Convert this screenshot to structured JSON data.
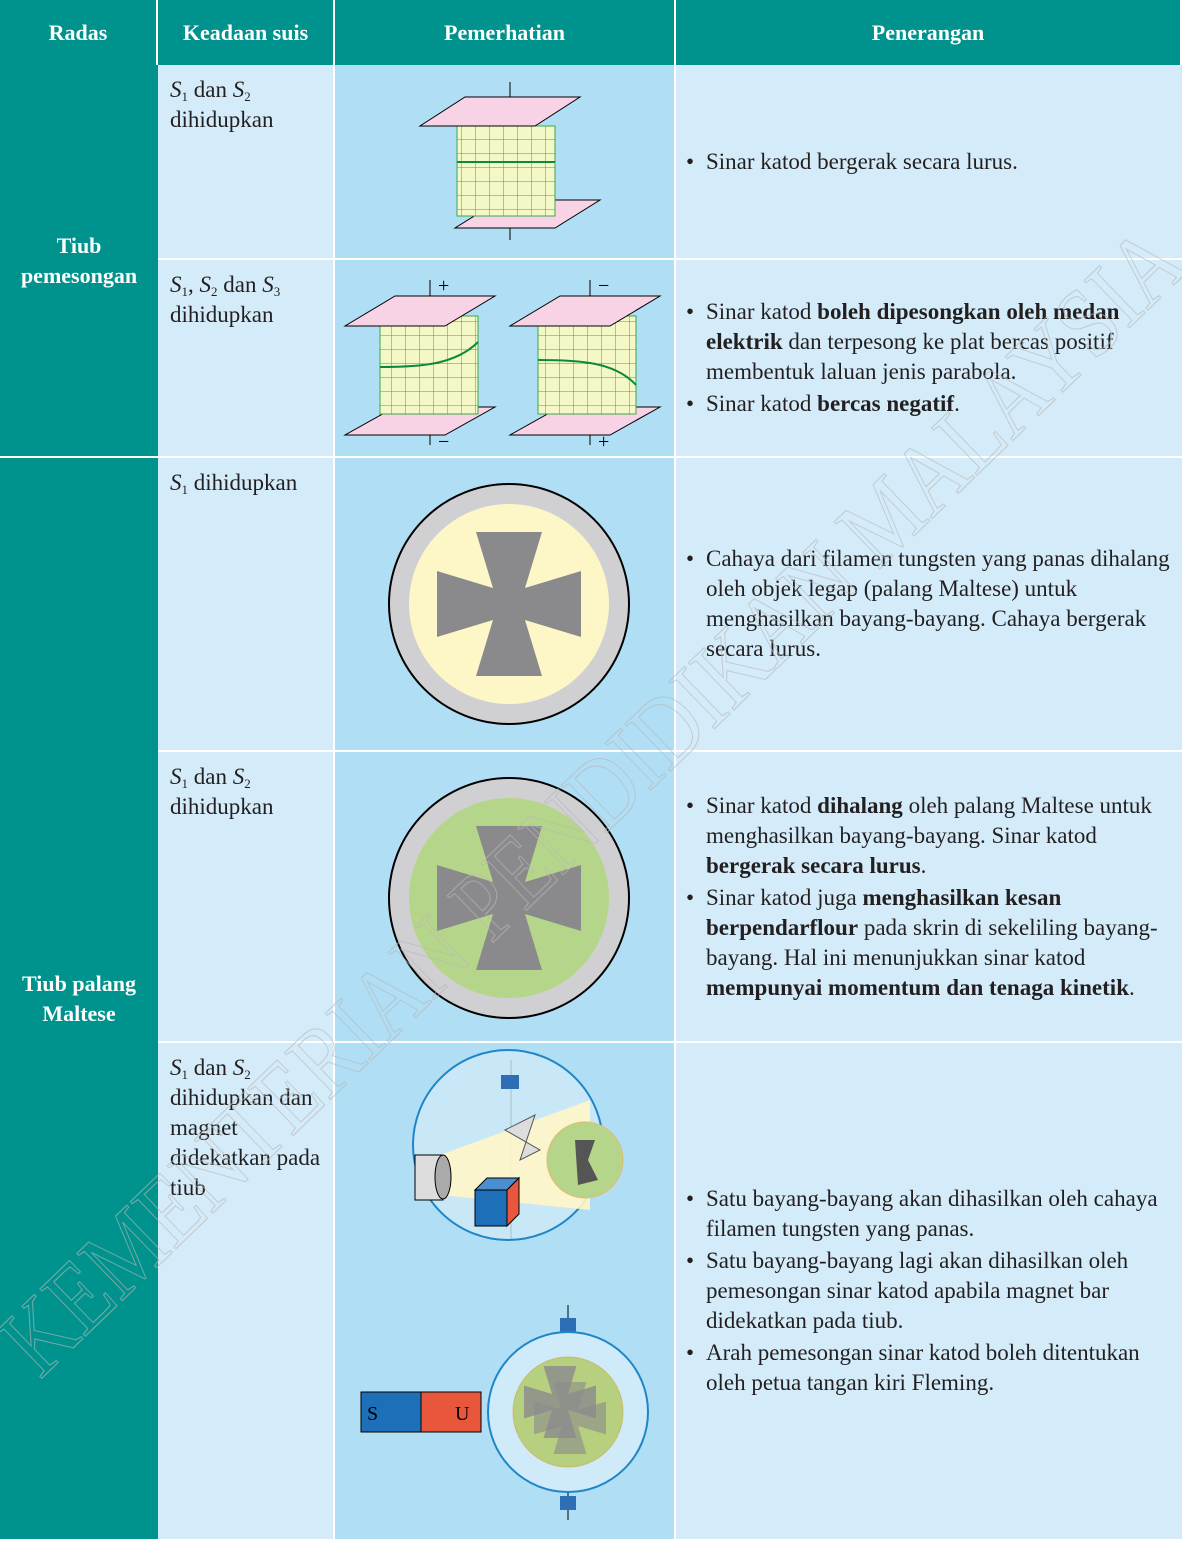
{
  "header": [
    "Radas",
    "Keadaan suis",
    "Pemerhatian",
    "Penerangan"
  ],
  "groups": [
    "Tiub pemesongan",
    "Tiub palang Maltese"
  ],
  "rows": [
    {
      "switch": [
        {
          "text": "S",
          "italic": true
        },
        {
          "text": "1",
          "sub": true
        },
        {
          "text": " dan "
        },
        {
          "text": "S",
          "italic": true
        },
        {
          "text": "2",
          "sub": true
        },
        {
          "text": " dihidupkan"
        }
      ],
      "explanation": [
        [
          {
            "text": "Sinar katod bergerak secara lurus."
          }
        ]
      ]
    },
    {
      "switch": [
        {
          "text": "S",
          "italic": true
        },
        {
          "text": "1",
          "sub": true
        },
        {
          "text": ", "
        },
        {
          "text": "S",
          "italic": true
        },
        {
          "text": "2",
          "sub": true
        },
        {
          "text": " dan "
        },
        {
          "text": "S",
          "italic": true
        },
        {
          "text": "3",
          "sub": true
        },
        {
          "text": " dihidupkan"
        }
      ],
      "explanation": [
        [
          {
            "text": "Sinar katod "
          },
          {
            "text": "boleh dipesongkan oleh medan elektrik",
            "bold": true
          },
          {
            "text": " dan terpesong ke plat bercas positif membentuk laluan jenis parabola."
          }
        ],
        [
          {
            "text": "Sinar katod "
          },
          {
            "text": "bercas negatif",
            "bold": true
          },
          {
            "text": "."
          }
        ]
      ],
      "labels": [
        "+",
        "−",
        "−",
        "+"
      ]
    },
    {
      "switch": [
        {
          "text": "S",
          "italic": true
        },
        {
          "text": "1",
          "sub": true
        },
        {
          "text": " dihidupkan"
        }
      ],
      "explanation": [
        [
          {
            "text": "Cahaya dari filamen tungsten yang panas dihalang oleh objek legap (palang Maltese) untuk menghasilkan bayang-bayang. Cahaya bergerak secara lurus."
          }
        ]
      ]
    },
    {
      "switch": [
        {
          "text": "S",
          "italic": true
        },
        {
          "text": "1",
          "sub": true
        },
        {
          "text": " dan "
        },
        {
          "text": "S",
          "italic": true
        },
        {
          "text": "2",
          "sub": true
        },
        {
          "text": " dihidupkan"
        }
      ],
      "explanation": [
        [
          {
            "text": "Sinar katod "
          },
          {
            "text": "dihalang",
            "bold": true
          },
          {
            "text": " oleh palang Maltese untuk menghasilkan bayang-bayang. Sinar katod "
          },
          {
            "text": "bergerak secara lurus",
            "bold": true
          },
          {
            "text": "."
          }
        ],
        [
          {
            "text": "Sinar katod juga "
          },
          {
            "text": "menghasilkan kesan berpendarflour",
            "bold": true
          },
          {
            "text": " pada skrin di sekeliling bayang-bayang. Hal ini menunjukkan sinar katod "
          },
          {
            "text": "mempunyai momentum dan tenaga kinetik",
            "bold": true
          },
          {
            "text": "."
          }
        ]
      ]
    },
    {
      "switch": [
        {
          "text": "S",
          "italic": true
        },
        {
          "text": "1",
          "sub": true
        },
        {
          "text": " dan "
        },
        {
          "text": "S",
          "italic": true
        },
        {
          "text": "2",
          "sub": true
        },
        {
          "text": " dihidupkan dan magnet didekatkan pada tiub"
        }
      ],
      "explanation": [
        [
          {
            "text": "Satu bayang-bayang akan dihasilkan oleh cahaya filamen tungsten yang panas."
          }
        ],
        [
          {
            "text": "Satu bayang-bayang lagi akan dihasilkan oleh pemesongan sinar katod apabila magnet bar didekatkan pada tiub."
          }
        ],
        [
          {
            "text": "Arah pemesongan sinar katod boleh ditentukan oleh petua tangan kiri Fleming."
          }
        ]
      ],
      "labels": [
        "S",
        "U"
      ]
    }
  ],
  "watermark": "KEMENTERIAN PENDIDIKAN MALAYSIA"
}
